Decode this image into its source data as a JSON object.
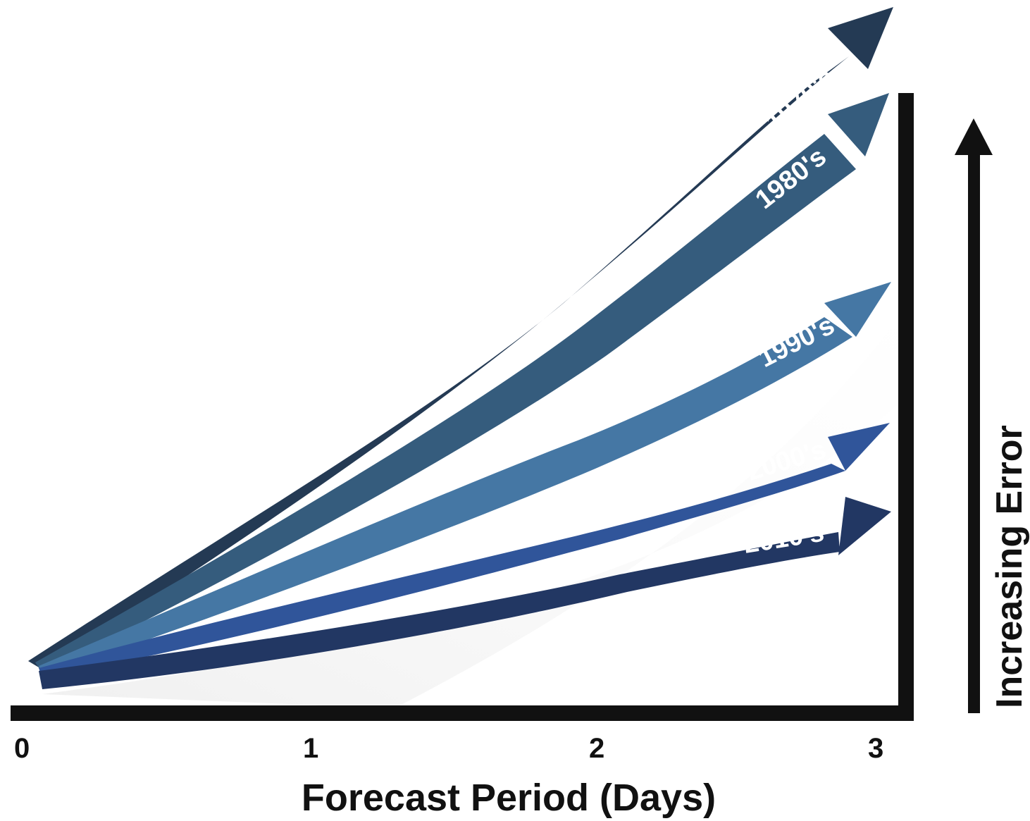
{
  "x_axis": {
    "title": "Forecast Period (Days)",
    "ticks": [
      "0",
      "1",
      "2",
      "3"
    ]
  },
  "y_axis": {
    "title": "Increasing Error"
  },
  "arrows": [
    {
      "label": "1970's",
      "color": "#243a54",
      "shadow": true
    },
    {
      "label": "1980's",
      "color": "#355c7d",
      "shadow": true
    },
    {
      "label": "1990's",
      "color": "#4577a4",
      "shadow": true
    },
    {
      "label": "2000's",
      "color": "#30559a",
      "shadow": true
    },
    {
      "label": "2010's",
      "color": "#223763",
      "shadow": false
    }
  ]
}
